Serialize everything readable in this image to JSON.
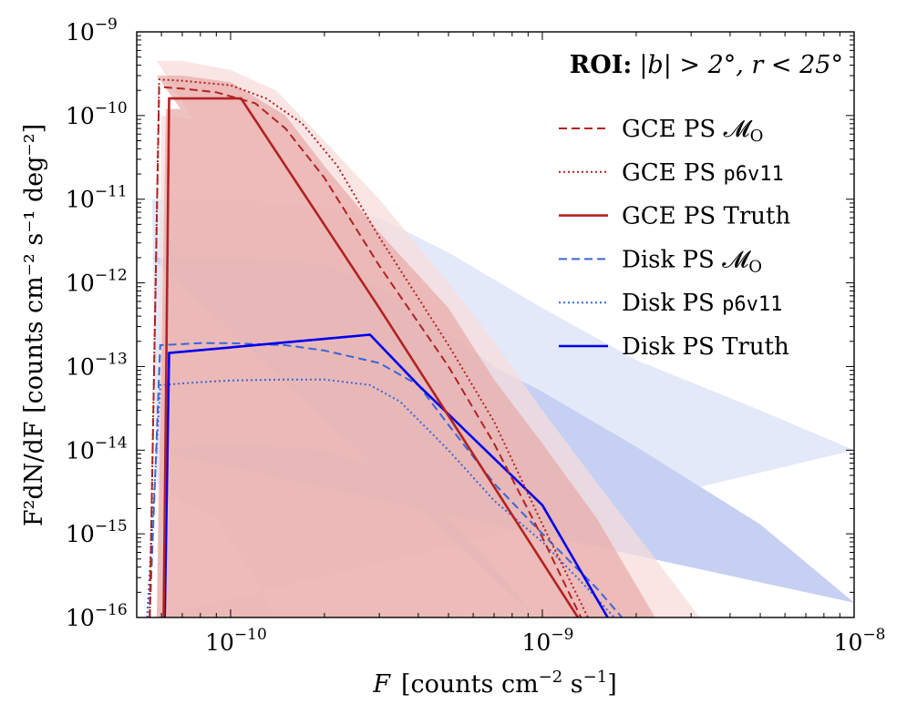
{
  "chart_data": {
    "type": "line",
    "xscale": "log",
    "yscale": "log",
    "xlim": [
      5e-11,
      1e-08
    ],
    "ylim": [
      1e-16,
      1e-09
    ],
    "x_ticks": [
      {
        "value": 1e-10,
        "base": "10",
        "exp": "−10"
      },
      {
        "value": 1e-09,
        "base": "10",
        "exp": "−9"
      },
      {
        "value": 1e-08,
        "base": "10",
        "exp": "−8"
      }
    ],
    "y_ticks": [
      {
        "value": 1e-16,
        "base": "10",
        "exp": "−16"
      },
      {
        "value": 1e-15,
        "base": "10",
        "exp": "−15"
      },
      {
        "value": 1e-14,
        "base": "10",
        "exp": "−14"
      },
      {
        "value": 1e-13,
        "base": "10",
        "exp": "−13"
      },
      {
        "value": 1e-12,
        "base": "10",
        "exp": "−12"
      },
      {
        "value": 1e-11,
        "base": "10",
        "exp": "−11"
      },
      {
        "value": 1e-10,
        "base": "10",
        "exp": "−10"
      },
      {
        "value": 1e-09,
        "base": "10",
        "exp": "−9"
      }
    ],
    "xlabel": {
      "var": "F",
      "text": "[counts cm",
      "exp1": "−2",
      "mid": " s",
      "exp2": "−1",
      "end": "]"
    },
    "ylabel": "F²dN/dF [counts cm⁻² s⁻¹ deg⁻²]",
    "annotation": {
      "bold": "ROI:",
      "text": "|b| > 2°, r < 25°"
    },
    "legend_position": "upper-right",
    "colors": {
      "gce": "#b22222",
      "gce_band_inner": "#e8aaa8",
      "gce_band_outer": "#f6dcda",
      "disk": "#3a66d8",
      "disk_truth": "#0000ee",
      "disk_band_inner": "#c6d0f2",
      "disk_band_outer": "#e4e9f9"
    },
    "bands": [
      {
        "group": "disk",
        "level": "outer",
        "upper": [
          [
            5.6e-11,
            1e-11
          ],
          [
            1e-10,
            1e-11
          ],
          [
            2e-10,
            8e-12
          ],
          [
            3e-10,
            6e-12
          ],
          [
            5e-10,
            2.3e-12
          ],
          [
            1e-09,
            5e-13
          ],
          [
            2e-09,
            1.2e-13
          ],
          [
            5e-09,
            3e-14
          ],
          [
            1e-08,
            1e-14
          ]
        ],
        "lower": [
          [
            5.6e-11,
            1e-16
          ],
          [
            1.4e-10,
            1e-16
          ],
          [
            1.2e-10,
            3e-16
          ],
          [
            9e-11,
            1.5e-15
          ],
          [
            7e-11,
            2.5e-15
          ],
          [
            5.8e-11,
            4e-15
          ]
        ]
      },
      {
        "group": "disk",
        "level": "inner",
        "upper": [
          [
            5.6e-11,
            2e-12
          ],
          [
            1e-10,
            2e-12
          ],
          [
            2e-10,
            1.7e-12
          ],
          [
            3e-10,
            9e-13
          ],
          [
            5e-10,
            2.5e-13
          ],
          [
            7e-10,
            1e-13
          ],
          [
            1e-09,
            5e-14
          ],
          [
            2e-09,
            1.1e-14
          ],
          [
            5e-09,
            1.3e-15
          ],
          [
            1e-08,
            1.5e-16
          ]
        ],
        "lower": [
          [
            5.6e-11,
            1e-14
          ],
          [
            1e-10,
            1.2e-14
          ],
          [
            2e-10,
            1e-14
          ],
          [
            3e-10,
            6e-15
          ],
          [
            5e-10,
            1.5e-15
          ],
          [
            7e-10,
            4e-16
          ],
          [
            9e-10,
            1.3e-16
          ],
          [
            9.5e-10,
            1e-16
          ]
        ]
      },
      {
        "group": "gce",
        "level": "outer",
        "upper": [
          [
            5.8e-11,
            4.5e-10
          ],
          [
            7e-11,
            4.5e-10
          ],
          [
            1e-10,
            3.5e-10
          ],
          [
            1.4e-10,
            2e-10
          ],
          [
            2e-10,
            5e-11
          ],
          [
            3e-10,
            1e-11
          ],
          [
            5e-10,
            1e-12
          ],
          [
            7e-10,
            2e-13
          ],
          [
            1e-09,
            3e-14
          ],
          [
            1.5e-09,
            4e-15
          ],
          [
            2e-09,
            1e-15
          ],
          [
            3.2e-09,
            1e-16
          ]
        ],
        "lower": [
          [
            5.8e-11,
            1e-16
          ],
          [
            6e-11,
            1e-10
          ],
          [
            1e-10,
            8e-11
          ],
          [
            1.3e-10,
            6e-11
          ],
          [
            1.7e-10,
            1e-11
          ],
          [
            2e-10,
            2e-12
          ],
          [
            2.5e-10,
            4e-13
          ],
          [
            3e-10,
            9e-14
          ],
          [
            4e-10,
            1e-14
          ],
          [
            5e-10,
            2e-15
          ],
          [
            6.5e-10,
            3e-16
          ],
          [
            7.5e-10,
            1e-16
          ]
        ]
      },
      {
        "group": "gce",
        "level": "inner",
        "upper": [
          [
            5.8e-11,
            3e-10
          ],
          [
            7e-11,
            3e-10
          ],
          [
            1e-10,
            2.5e-10
          ],
          [
            1.5e-10,
            1e-10
          ],
          [
            2e-10,
            2.5e-11
          ],
          [
            3e-10,
            4e-12
          ],
          [
            5e-10,
            5e-13
          ],
          [
            7e-10,
            7e-14
          ],
          [
            1e-09,
            1.2e-14
          ],
          [
            1.5e-09,
            1.5e-15
          ],
          [
            2.3e-09,
            1e-16
          ]
        ],
        "lower": [
          [
            5.8e-11,
            1e-16
          ],
          [
            6.2e-11,
            1.2e-10
          ],
          [
            1e-10,
            1.2e-10
          ],
          [
            1.3e-10,
            8e-11
          ],
          [
            1.8e-10,
            2e-11
          ],
          [
            2.5e-10,
            2e-12
          ],
          [
            3e-10,
            5e-13
          ],
          [
            4e-10,
            8e-14
          ],
          [
            5e-10,
            1.5e-14
          ],
          [
            7e-10,
            1.5e-15
          ],
          [
            1e-09,
            1e-16
          ]
        ]
      }
    ],
    "series": [
      {
        "name": "Disk PS 𝓜",
        "name_sub": "O",
        "group": "disk",
        "color": "#3a66d8",
        "dash": "9,5",
        "width": 2,
        "points": [
          [
            5.5e-11,
            1e-16
          ],
          [
            5.95e-11,
            1.8e-13
          ],
          [
            8e-11,
            1.9e-13
          ],
          [
            1e-10,
            1.9e-13
          ],
          [
            1.5e-10,
            1.8e-13
          ],
          [
            2e-10,
            1.55e-13
          ],
          [
            3e-10,
            1.1e-13
          ],
          [
            4e-10,
            6e-14
          ],
          [
            5e-10,
            2e-14
          ],
          [
            7e-10,
            4e-15
          ],
          [
            1e-09,
            1e-15
          ],
          [
            1.5e-09,
            2.2e-16
          ],
          [
            1.8e-09,
            1e-16
          ]
        ]
      },
      {
        "name": "Disk PS ",
        "name_mono": "p6v11",
        "group": "disk",
        "color": "#3a66d8",
        "dash": "2,3",
        "width": 2,
        "points": [
          [
            5.4e-11,
            1e-16
          ],
          [
            5.95e-11,
            6e-14
          ],
          [
            8e-11,
            6.5e-14
          ],
          [
            1e-10,
            6.8e-14
          ],
          [
            1.5e-10,
            7e-14
          ],
          [
            2e-10,
            7e-14
          ],
          [
            2.8e-10,
            6e-14
          ],
          [
            3.5e-10,
            3.8e-14
          ],
          [
            5e-10,
            1e-14
          ],
          [
            7e-10,
            2.5e-15
          ],
          [
            1e-09,
            8e-16
          ],
          [
            1.4e-09,
            2.2e-16
          ],
          [
            1.7e-09,
            1e-16
          ]
        ]
      },
      {
        "name": "Disk PS Truth",
        "group": "disk",
        "color": "#0000ee",
        "dash": "",
        "width": 2.6,
        "points": [
          [
            6.15e-11,
            1e-16
          ],
          [
            6.35e-11,
            1.45e-13
          ],
          [
            2.8e-10,
            2.4e-13
          ],
          [
            4e-10,
            6e-14
          ],
          [
            1e-09,
            2.2e-15
          ],
          [
            1.62e-09,
            1e-16
          ]
        ]
      },
      {
        "name": "GCE PS 𝓜",
        "name_sub": "O",
        "group": "gce",
        "color": "#b22222",
        "dash": "9,5",
        "width": 2,
        "points": [
          [
            5.5e-11,
            1e-16
          ],
          [
            5.9e-11,
            2.2e-10
          ],
          [
            7e-11,
            2.1e-10
          ],
          [
            9e-11,
            1.9e-10
          ],
          [
            1.2e-10,
            1.4e-10
          ],
          [
            1.5e-10,
            7e-11
          ],
          [
            2e-10,
            1.8e-11
          ],
          [
            3e-10,
            1.6e-12
          ],
          [
            5e-10,
            1e-13
          ],
          [
            7e-10,
            1.2e-14
          ],
          [
            1e-09,
            9e-16
          ],
          [
            1.33e-09,
            1e-16
          ]
        ]
      },
      {
        "name": "GCE PS ",
        "name_mono": "p6v11",
        "group": "gce",
        "color": "#b22222",
        "dash": "2,3",
        "width": 2,
        "points": [
          [
            5.5e-11,
            1e-16
          ],
          [
            5.9e-11,
            2.7e-10
          ],
          [
            7e-11,
            2.6e-10
          ],
          [
            1e-10,
            2.3e-10
          ],
          [
            1.3e-10,
            1.6e-10
          ],
          [
            1.7e-10,
            8e-11
          ],
          [
            2.2e-10,
            2.5e-11
          ],
          [
            3e-10,
            3.5e-12
          ],
          [
            5e-10,
            1.8e-13
          ],
          [
            7e-10,
            2.2e-14
          ],
          [
            1e-09,
            1.3e-15
          ],
          [
            1.4e-09,
            1e-16
          ]
        ]
      },
      {
        "name": "GCE PS Truth",
        "group": "gce",
        "color": "#b22222",
        "dash": "",
        "width": 2.6,
        "points": [
          [
            6.1e-11,
            1e-16
          ],
          [
            6.35e-11,
            1.6e-10
          ],
          [
            1.08e-10,
            1.6e-10
          ],
          [
            3e-10,
            5e-13
          ],
          [
            1.3e-09,
            1e-16
          ]
        ]
      }
    ]
  }
}
